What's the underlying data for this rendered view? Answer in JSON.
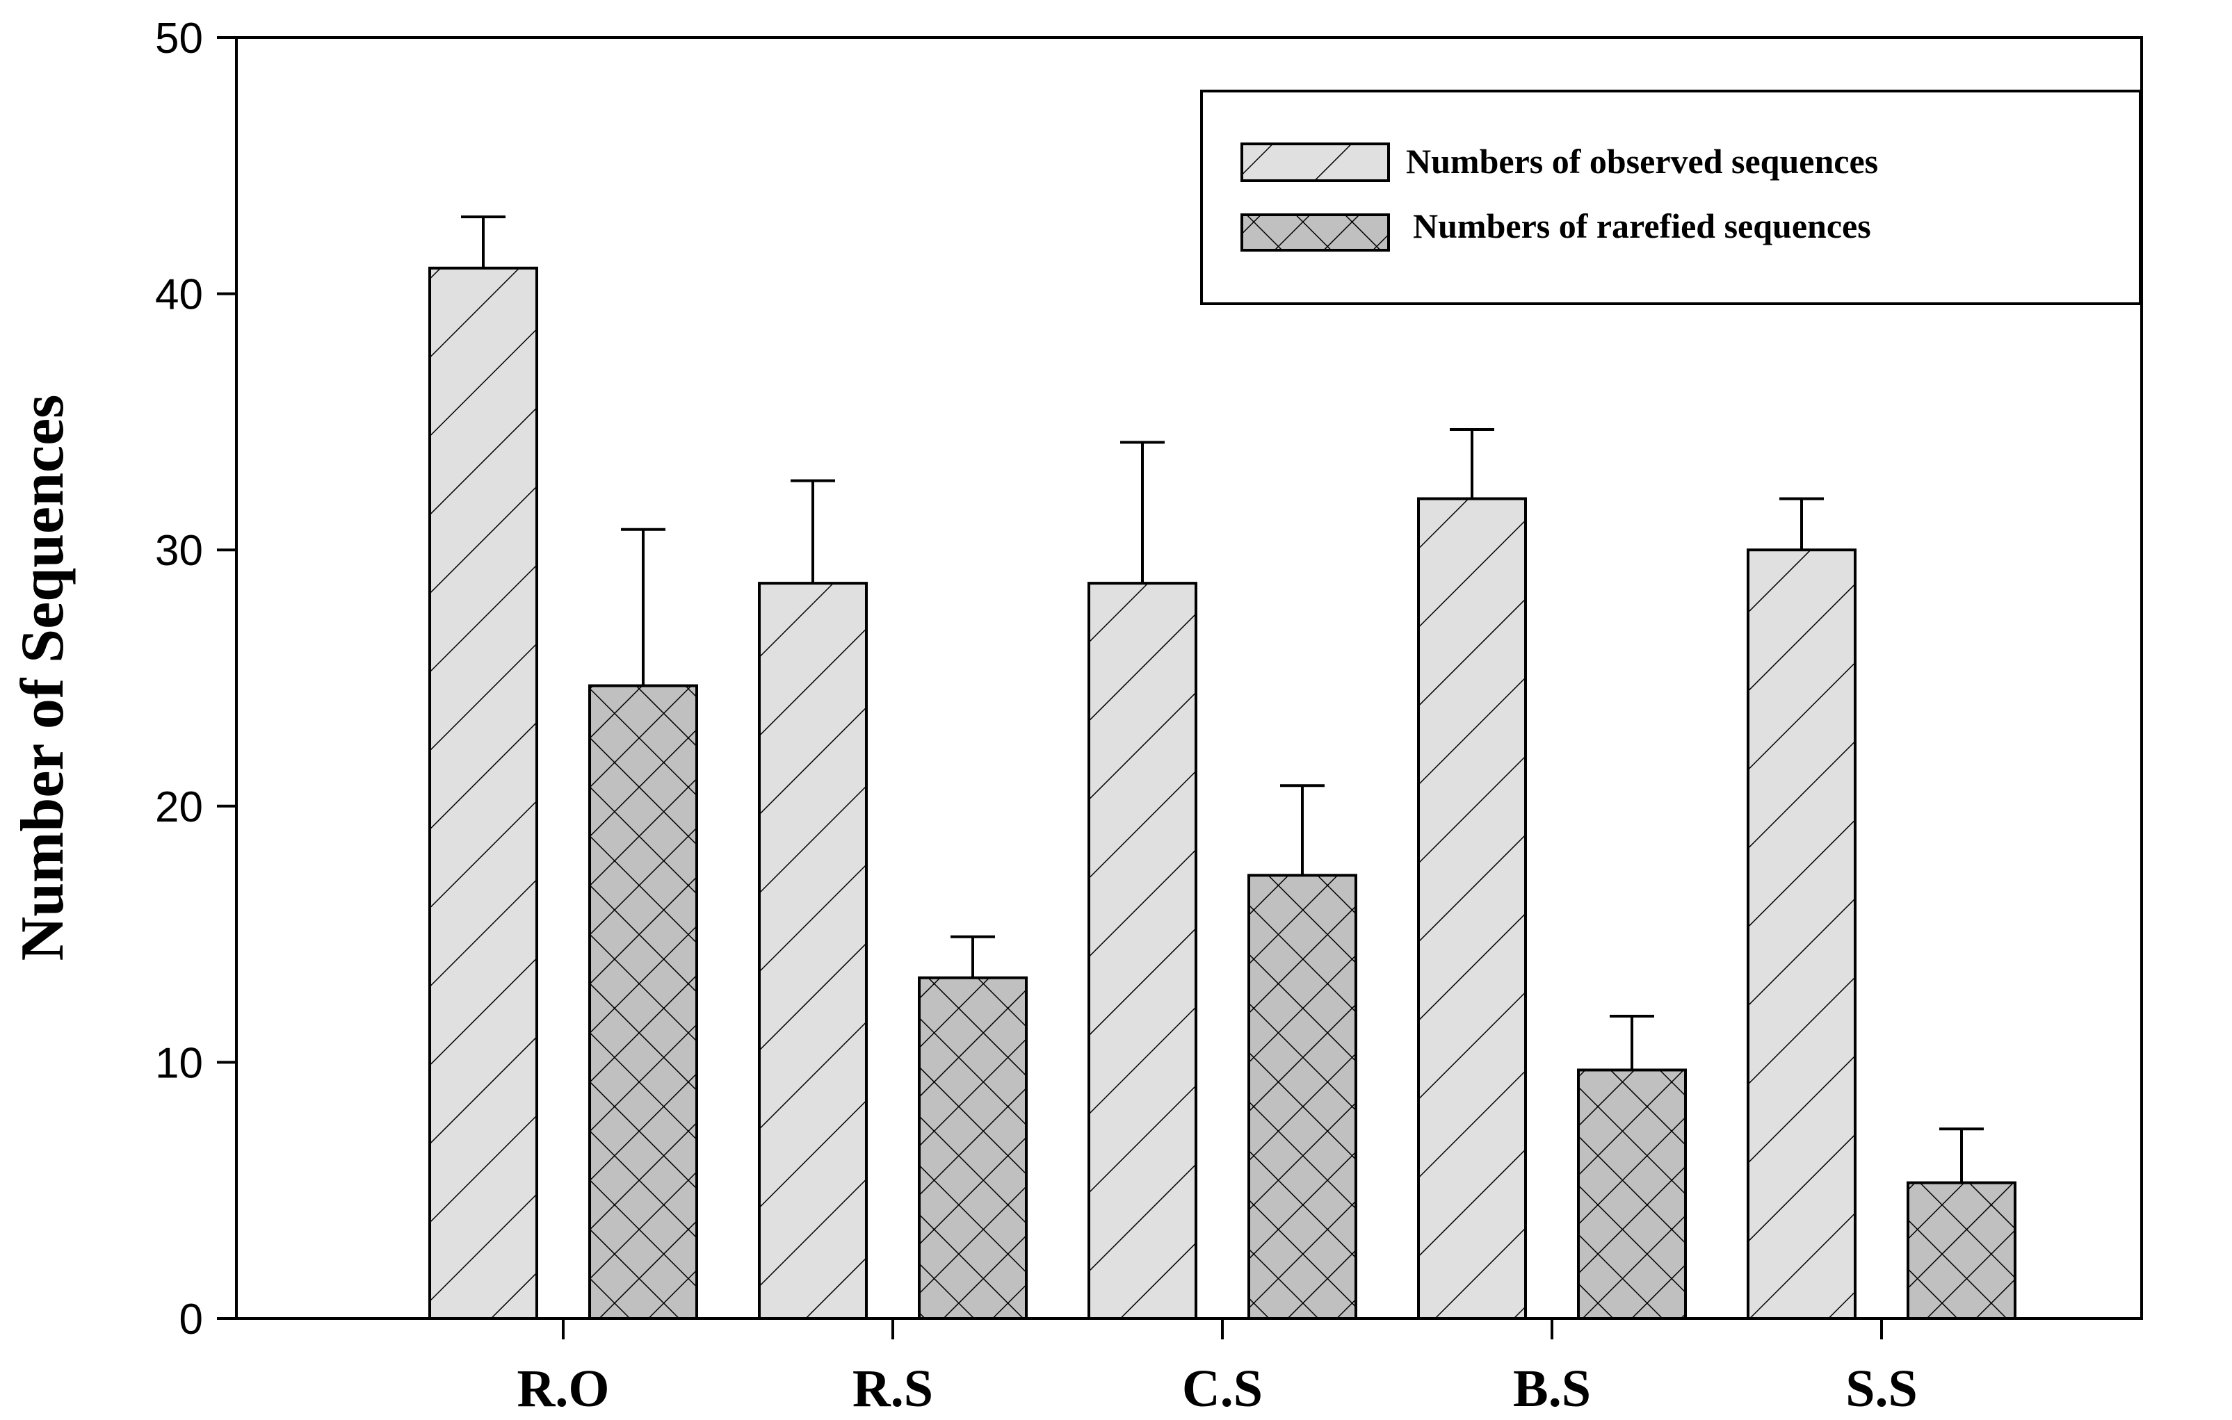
{
  "chart_data": {
    "type": "bar",
    "title": "",
    "xlabel": "",
    "ylabel": "Number of Sequences",
    "ylim": [
      0,
      50
    ],
    "yticks": [
      0,
      10,
      20,
      30,
      40,
      50
    ],
    "grid": false,
    "legend_position": "top-right",
    "categories": [
      "R.O",
      "R.S",
      "C.S",
      "B.S",
      "S.S"
    ],
    "series": [
      {
        "name": "Numbers of observed sequences",
        "pattern": "diagonal-hatch",
        "fill": "#e0e0e0",
        "values": [
          41,
          28.7,
          28.7,
          32,
          30
        ],
        "errors": [
          2,
          4,
          5.5,
          2.7,
          2
        ]
      },
      {
        "name": "Numbers of rarefied sequences",
        "pattern": "crosshatch",
        "fill": "#c0c0c0",
        "values": [
          24.7,
          13.3,
          17.3,
          9.7,
          5.3
        ],
        "errors": [
          6.1,
          1.6,
          3.5,
          2.1,
          2.1
        ]
      }
    ]
  },
  "colors": {
    "stroke": "#000000",
    "background": "#ffffff"
  }
}
